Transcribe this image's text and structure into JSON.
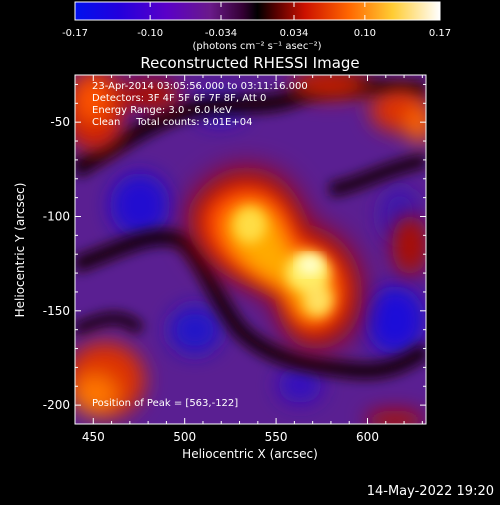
{
  "colorbar": {
    "tick_labels": [
      "-0.17",
      "-0.10",
      "-0.034",
      "0.034",
      "0.10",
      "0.17"
    ],
    "tick_values": [
      -0.17,
      -0.1,
      -0.034,
      0.034,
      0.1,
      0.17
    ],
    "range": [
      -0.17,
      0.17
    ],
    "units": "(photons cm⁻² s⁻¹ asec⁻²)",
    "colormap": [
      "#0000cc",
      "#6600cc",
      "#660066",
      "#000000",
      "#990000",
      "#ff6600",
      "#ffff99",
      "#ffffff"
    ]
  },
  "title": "Reconstructed RHESSI Image",
  "info": {
    "line1": "23-Apr-2014 03:05:56.000 to 03:11:16.000",
    "line2": "Detectors: 3F 4F 5F 6F 7F 8F, Att 0",
    "line3": "Energy Range: 3.0 - 6.0 keV",
    "line4": "Clean     Total counts: 9.01E+04",
    "peak": "Position of Peak = [563,-122]"
  },
  "axes": {
    "xlabel": "Heliocentric X (arcsec)",
    "ylabel": "Heliocentric Y (arcsec)",
    "xlim": [
      440,
      632
    ],
    "ylim": [
      -210,
      -25
    ],
    "xticks": [
      {
        "value": 450,
        "label": "450"
      },
      {
        "value": 500,
        "label": "500"
      },
      {
        "value": 550,
        "label": "550"
      },
      {
        "value": 600,
        "label": "600"
      }
    ],
    "yticks": [
      {
        "value": -50,
        "label": "-50"
      },
      {
        "value": -100,
        "label": "-100"
      },
      {
        "value": -150,
        "label": "-150"
      },
      {
        "value": -200,
        "label": "-200"
      }
    ]
  },
  "footer": {
    "datestamp": "14-May-2022 19:20"
  },
  "colors": {
    "background": "#000000",
    "foreground": "#ffffff"
  }
}
